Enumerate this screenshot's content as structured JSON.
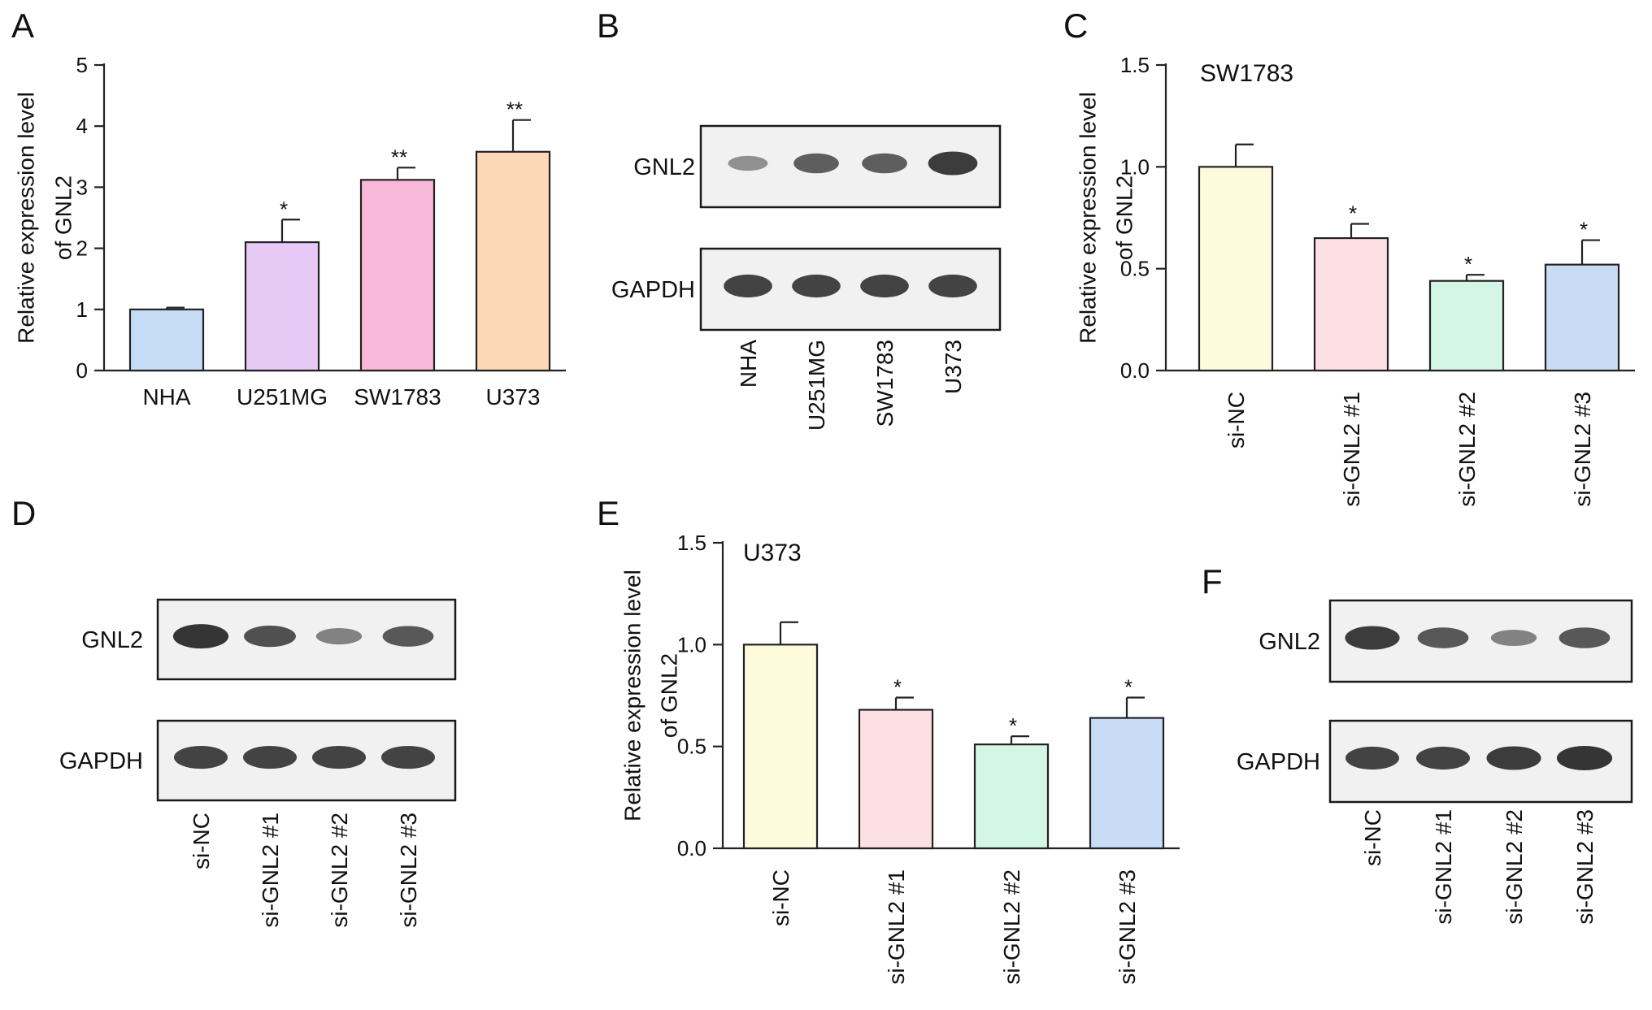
{
  "panel_letters": {
    "a": "A",
    "b": "B",
    "c": "C",
    "d": "D",
    "e": "E",
    "f": "F"
  },
  "colors": {
    "A": [
      "#c6dcf7",
      "#e7c9f6",
      "#f8b8d9",
      "#fcd8b6"
    ],
    "si": [
      "#fefadc",
      "#fde0e3",
      "#d4f6e7",
      "#c8dcf6"
    ],
    "axis": "#222222",
    "blot_bg": "#f1f1f1",
    "band": "#2a2a2a"
  },
  "chart_data": [
    {
      "panel": "A",
      "type": "bar",
      "categories": [
        "NHA",
        "U251MG",
        "SW1783",
        "U373"
      ],
      "values": [
        1.0,
        2.1,
        3.12,
        3.58
      ],
      "errors": [
        0.03,
        0.37,
        0.2,
        0.52
      ],
      "significance": [
        "",
        "*",
        "**",
        "**"
      ],
      "ylabel": [
        "Relative expression level",
        "of GNL2"
      ],
      "ylim": [
        0,
        5
      ],
      "yticks": [
        "0",
        "1",
        "2",
        "3",
        "4",
        "5"
      ],
      "annotation": ""
    },
    {
      "panel": "C",
      "type": "bar",
      "categories": [
        "si-NC",
        "si-GNL2 #1",
        "si-GNL2 #2",
        "si-GNL2 #3"
      ],
      "values": [
        1.0,
        0.65,
        0.44,
        0.52
      ],
      "errors": [
        0.11,
        0.07,
        0.03,
        0.12
      ],
      "significance": [
        "",
        "*",
        "*",
        "*"
      ],
      "ylabel": [
        "Relative expression level",
        "of GNL2"
      ],
      "ylim": [
        0,
        1.5
      ],
      "yticks": [
        "0.0",
        "0.5",
        "1.0",
        "1.5"
      ],
      "annotation": "SW1783"
    },
    {
      "panel": "E",
      "type": "bar",
      "categories": [
        "si-NC",
        "si-GNL2 #1",
        "si-GNL2 #2",
        "si-GNL2 #3"
      ],
      "values": [
        1.0,
        0.68,
        0.51,
        0.64
      ],
      "errors": [
        0.11,
        0.06,
        0.04,
        0.1
      ],
      "significance": [
        "",
        "*",
        "*",
        "*"
      ],
      "ylabel": [
        "Relative expression level",
        "of GNL2"
      ],
      "ylim": [
        0,
        1.5
      ],
      "yticks": [
        "0.0",
        "0.5",
        "1.0",
        "1.5"
      ],
      "annotation": "U373"
    }
  ],
  "blots": [
    {
      "panel": "B",
      "rows": [
        {
          "label": "GNL2",
          "intensity": [
            0.35,
            0.7,
            0.7,
            0.95
          ]
        },
        {
          "label": "GAPDH",
          "intensity": [
            0.9,
            0.9,
            0.9,
            0.9
          ]
        }
      ],
      "lanes": [
        "NHA",
        "U251MG",
        "SW1783",
        "U373"
      ]
    },
    {
      "panel": "D",
      "rows": [
        {
          "label": "GNL2",
          "intensity": [
            1.0,
            0.8,
            0.45,
            0.75
          ]
        },
        {
          "label": "GAPDH",
          "intensity": [
            0.9,
            0.9,
            0.9,
            0.9
          ]
        }
      ],
      "lanes": [
        "si-NC",
        "si-GNL2 #1",
        "si-GNL2 #2",
        "si-GNL2 #3"
      ]
    },
    {
      "panel": "F",
      "rows": [
        {
          "label": "GNL2",
          "intensity": [
            0.95,
            0.75,
            0.45,
            0.75
          ]
        },
        {
          "label": "GAPDH",
          "intensity": [
            0.9,
            0.9,
            0.95,
            1.0
          ]
        }
      ],
      "lanes": [
        "si-NC",
        "si-GNL2 #1",
        "si-GNL2 #2",
        "si-GNL2 #3"
      ]
    }
  ]
}
